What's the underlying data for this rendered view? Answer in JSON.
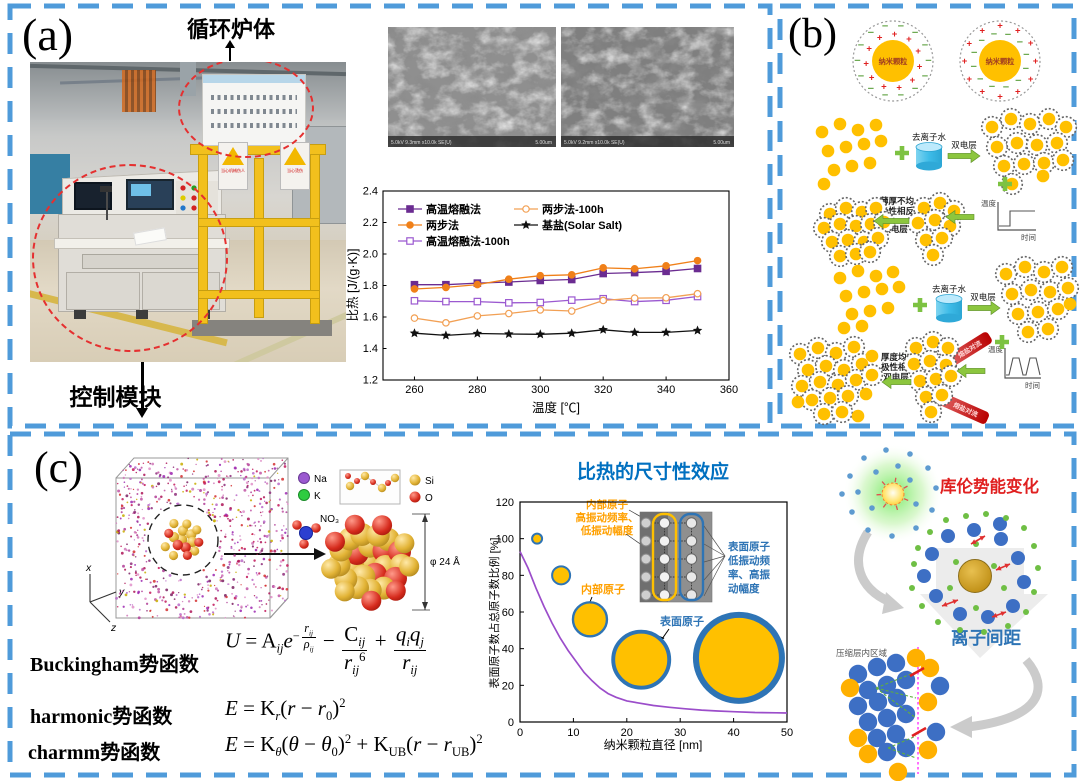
{
  "panel_a": {
    "label": "(a)",
    "furnace_callout": "循环炉体",
    "control_callout": "控制模块",
    "sem_left_caption": "5.0kV 9.3mm x10.0k SE(U)",
    "sem_right_caption": "5.0kV 9.2mm x10.0k SE(U)",
    "sem_scale": "5.00um",
    "warn_sign_left": "当心机械伤人",
    "warn_sign_right": "当心烫伤"
  },
  "panel_b": {
    "label": "(b)",
    "nanoparticle": "纳米颗粒",
    "plus_symbol": "+",
    "minus_symbol": "−",
    "deionized_water": "去离子水",
    "double_layer": "双电层",
    "agg_line1": "薄厚不均",
    "agg_line2": "极性相反",
    "disp_line1": "厚度均一",
    "disp_line2": "极性相同",
    "temp_label": "温度",
    "time_label": "时间",
    "convection": "熔盐对流"
  },
  "panel_c": {
    "label": "(c)",
    "legend": {
      "na": "Na",
      "k": "K",
      "no3": "NO₃",
      "si": "Si",
      "o": "O"
    },
    "diameter_label": "φ 24 Å",
    "axis_x": "x",
    "axis_y": "y",
    "axis_z": "z",
    "coulomb_label": "库伦势能变化",
    "ion_spacing_label": "离子间距",
    "compressed_layer_label": "压缩层内区域",
    "formulas": {
      "buck": {
        "label": "Buckingham势函数",
        "U": "U",
        "eq": " = ",
        "A": "A",
        "Asub": "ij",
        "e": "e",
        "minus": "−",
        "rnum": "r",
        "rnumsub": "ij",
        "rden": "ρ",
        "rdensub": "ij",
        "minus2": " − ",
        "C": "C",
        "Csub": "ij",
        "r6": "r",
        "r6sub": "ij",
        "r6sup": "6",
        "plus": " + ",
        "qi": "q",
        "qisub": "i",
        "qj": "q",
        "qjsub": "j",
        "rij": "r",
        "rijsub": "ij"
      },
      "harm": {
        "label": "harmonic势函数",
        "E": "E",
        "eq": " = ",
        "K": "K",
        "Ksub": "r",
        "open": "(",
        "r": "r",
        "minus": " − ",
        "r0": "r",
        "r0sub": "0",
        "close": ")",
        "sup": "2"
      },
      "charmm": {
        "label": "charmm势函数",
        "E": "E",
        "eq": " = ",
        "K1": "K",
        "K1sub": "θ",
        "open1": "(",
        "th": "θ",
        "minus1": " − ",
        "th0": "θ",
        "th0sub": "0",
        "close1": ")",
        "sup1": "2",
        "plus": " + ",
        "K2": "K",
        "K2sub": "UB",
        "open2": "(",
        "r": "r",
        "minus2": " − ",
        "rub": "r",
        "rubsub": "UB",
        "close2": ")",
        "sup2": "2"
      }
    }
  },
  "chart_data": [
    {
      "type": "line",
      "title": "",
      "xlabel": "温度 [℃]",
      "ylabel": "比热 [J/(g·K)]",
      "xlim": [
        250,
        360
      ],
      "ylim": [
        1.2,
        2.4
      ],
      "xticks": [
        260,
        280,
        300,
        320,
        340,
        360
      ],
      "yticks": [
        1.2,
        1.4,
        1.6,
        1.8,
        2.0,
        2.2,
        2.4
      ],
      "x": [
        260,
        270,
        280,
        290,
        300,
        310,
        320,
        330,
        340,
        350
      ],
      "series": [
        {
          "name": "高温熔融法",
          "color": "#6B2C91",
          "marker": "square",
          "open": false,
          "values": [
            1.805,
            1.805,
            1.815,
            1.822,
            1.832,
            1.838,
            1.876,
            1.882,
            1.89,
            1.908
          ]
        },
        {
          "name": "两步法",
          "color": "#F08019",
          "marker": "circle",
          "open": false,
          "values": [
            1.778,
            1.788,
            1.806,
            1.84,
            1.862,
            1.868,
            1.912,
            1.906,
            1.925,
            1.958
          ]
        },
        {
          "name": "高温熔融法-100h",
          "color": "#9B59D0",
          "marker": "square",
          "open": true,
          "values": [
            1.703,
            1.698,
            1.698,
            1.69,
            1.692,
            1.707,
            1.716,
            1.698,
            1.706,
            1.73
          ]
        },
        {
          "name": "两步法-100h",
          "color": "#F2A054",
          "marker": "circle",
          "open": true,
          "values": [
            1.593,
            1.563,
            1.607,
            1.622,
            1.645,
            1.638,
            1.705,
            1.72,
            1.722,
            1.748
          ]
        },
        {
          "name": "基盐(Solar Salt)",
          "color": "#111111",
          "marker": "star",
          "open": false,
          "values": [
            1.497,
            1.483,
            1.495,
            1.492,
            1.49,
            1.497,
            1.519,
            1.502,
            1.502,
            1.514
          ]
        }
      ]
    },
    {
      "type": "line",
      "title": "比热的尺寸性效应",
      "xlabel": "纳米颗粒直径 [nm]",
      "ylabel": "表面原子数占总原子数比例 [%]",
      "xlim": [
        0,
        50
      ],
      "ylim": [
        0,
        120
      ],
      "xticks": [
        0,
        10,
        20,
        30,
        40,
        50
      ],
      "yticks": [
        0,
        20,
        40,
        60,
        80,
        100,
        120
      ],
      "curve": {
        "color": "#9B4DCA",
        "x": [
          0,
          1.5,
          3,
          4.5,
          6,
          7.5,
          9,
          10.5,
          12,
          13.5,
          15,
          16.5,
          18,
          20,
          22,
          25,
          28,
          31,
          34,
          37,
          40,
          44,
          48,
          50
        ],
        "y": [
          93,
          84,
          73,
          63,
          54,
          46,
          39,
          33,
          27,
          22.5,
          18.5,
          15.5,
          13.5,
          11.5,
          10.5,
          9,
          8,
          7.2,
          6.5,
          6,
          5.6,
          5.2,
          5,
          4.9
        ]
      },
      "bubbles": [
        {
          "x": 3.2,
          "y": 100,
          "r": 5
        },
        {
          "x": 7.7,
          "y": 80,
          "r": 9
        },
        {
          "x": 13.1,
          "y": 56,
          "r": 17
        },
        {
          "x": 22.7,
          "y": 34,
          "r": 28
        },
        {
          "x": 41,
          "y": 35,
          "r": 43
        }
      ],
      "annotations": {
        "inner_note": {
          "color": "#FFA000",
          "lines": [
            "内部原子",
            "高振动频率、",
            "低振动幅度"
          ]
        },
        "inner_atom": {
          "color": "#FFA000",
          "text": "内部原子"
        },
        "surface_atom": {
          "color": "#2E74B5",
          "text": "表面原子"
        },
        "surface_note": {
          "color": "#2E74B5",
          "lines": [
            "表面原子",
            "低振动频",
            "率、高振",
            "动幅度"
          ]
        }
      }
    }
  ]
}
